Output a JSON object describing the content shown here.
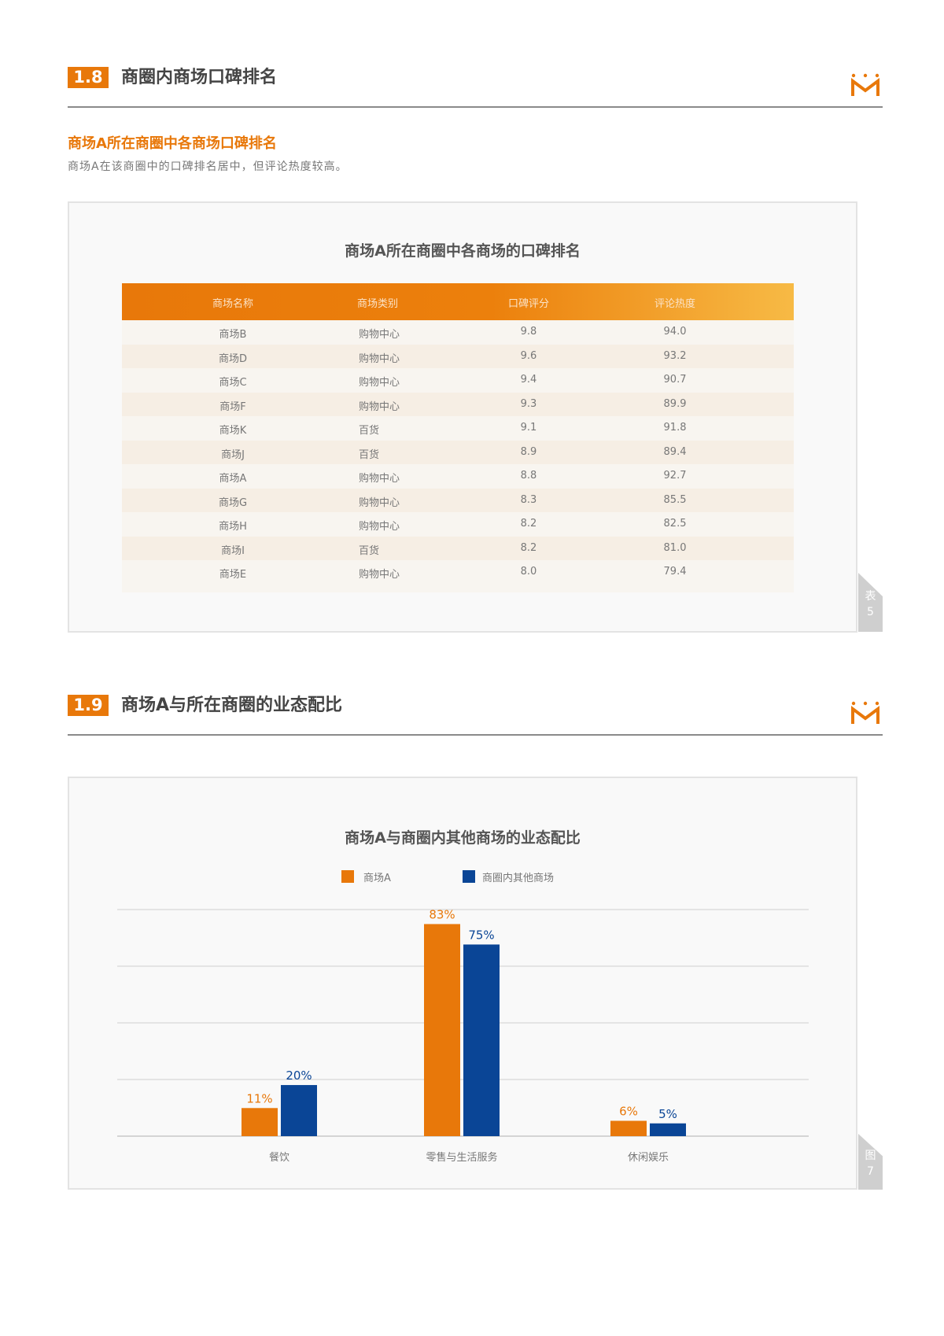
{
  "colors": {
    "accent": "#E8780A",
    "blue": "#0A4596",
    "row_odd": "#F8F5F0",
    "row_even": "#F6EEE4"
  },
  "logo_icon": "crown-m-logo-icon",
  "section1": {
    "number": "1.8",
    "title": "商圈内商场口碑排名",
    "subtitle": "商场A所在商圈中各商场口碑排名",
    "description": "商场A在该商圈中的口碑排名居中，但评论热度较高。",
    "table": {
      "title": "商场A所在商圈中各商场的口碑排名",
      "columns": [
        "商场名称",
        "商场类别",
        "口碑评分",
        "评论热度"
      ],
      "rows": [
        [
          "商场B",
          "购物中心",
          "9.8",
          "94.0"
        ],
        [
          "商场D",
          "购物中心",
          "9.6",
          "93.2"
        ],
        [
          "商场C",
          "购物中心",
          "9.4",
          "90.7"
        ],
        [
          "商场F",
          "购物中心",
          "9.3",
          "89.9"
        ],
        [
          "商场K",
          "百货",
          "9.1",
          "91.8"
        ],
        [
          "商场J",
          "百货",
          "8.9",
          "89.4"
        ],
        [
          "商场A",
          "购物中心",
          "8.8",
          "92.7"
        ],
        [
          "商场G",
          "购物中心",
          "8.3",
          "85.5"
        ],
        [
          "商场H",
          "购物中心",
          "8.2",
          "82.5"
        ],
        [
          "商场I",
          "百货",
          "8.2",
          "81.0"
        ],
        [
          "商场E",
          "购物中心",
          "8.0",
          "79.4"
        ]
      ],
      "tab_label": "表",
      "tab_number": "5"
    }
  },
  "section2": {
    "number": "1.9",
    "title": "商场A与所在商圈的业态配比",
    "tab_label": "图",
    "tab_number": "7"
  },
  "chart_data": {
    "type": "bar",
    "title": "商场A与商圈内其他商场的业态配比",
    "categories": [
      "餐饮",
      "零售与生活服务",
      "休闲娱乐"
    ],
    "series": [
      {
        "name": "商场A",
        "values": [
          11,
          83,
          6
        ],
        "labels": [
          "11%",
          "83%",
          "6%"
        ],
        "color": "#E8780A"
      },
      {
        "name": "商圈内其他商场",
        "values": [
          20,
          75,
          5
        ],
        "labels": [
          "20%",
          "75%",
          "5%"
        ],
        "color": "#0A4596"
      }
    ],
    "ylim": [
      0,
      94
    ],
    "grid": true,
    "legend": "top"
  }
}
